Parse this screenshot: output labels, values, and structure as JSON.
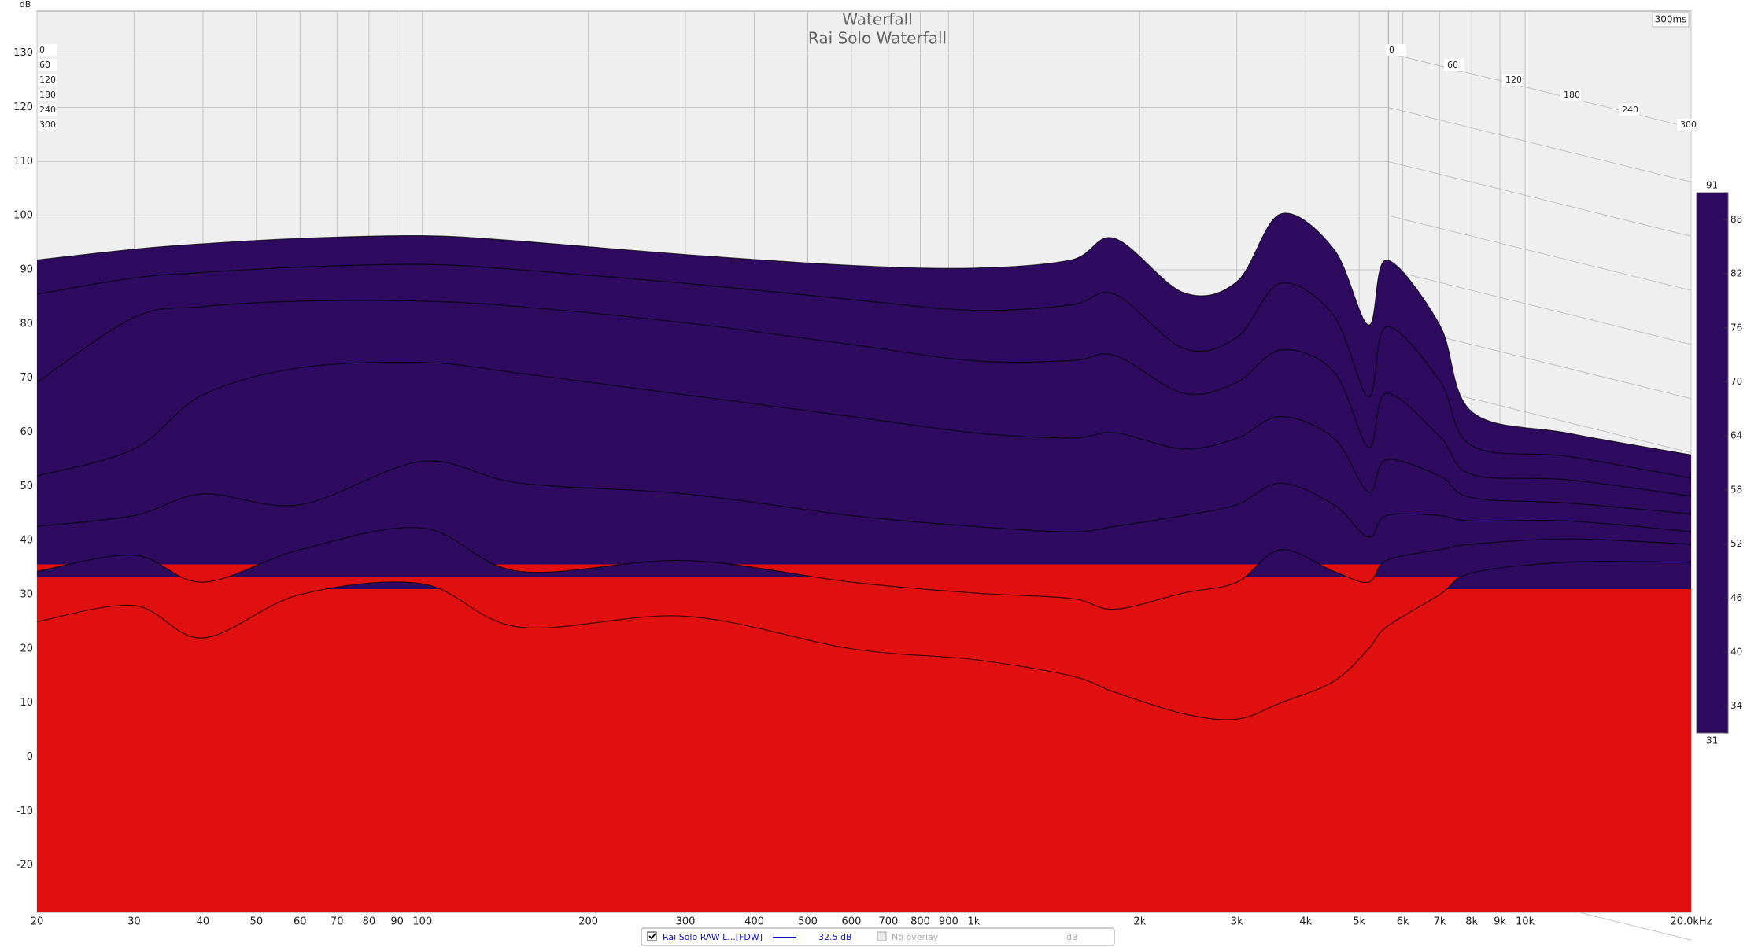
{
  "chart_data": {
    "type": "waterfall",
    "title": "Waterfall",
    "subtitle": "Rai Solo Waterfall",
    "y_label": "dB",
    "time_range_label": "300ms",
    "x": [
      20,
      30,
      40,
      60,
      100,
      150,
      300,
      600,
      1000,
      1500,
      1800,
      2400,
      3000,
      3600,
      4500,
      5200,
      5600,
      7000,
      8000,
      12000,
      20000
    ],
    "series": [
      {
        "time": 0,
        "values": [
          78,
          80,
          81,
          82,
          82.5,
          81.5,
          79,
          77,
          76.5,
          78,
          82,
          72,
          74,
          86.5,
          80,
          66,
          78,
          66,
          50,
          46,
          42
        ]
      },
      {
        "time": 50,
        "values": [
          74,
          77,
          78,
          79,
          79.5,
          78.5,
          76,
          73,
          71,
          72,
          74,
          64,
          66,
          76,
          70,
          55,
          68,
          58,
          46,
          44,
          40
        ]
      },
      {
        "time": 100,
        "values": [
          60,
          72,
          74,
          75,
          75,
          74,
          71,
          67,
          64,
          64,
          65,
          58,
          60,
          66,
          62,
          48,
          58,
          50,
          43,
          42,
          39
        ]
      },
      {
        "time": 150,
        "values": [
          45,
          50,
          60,
          65,
          66,
          64,
          60,
          56,
          53,
          52,
          53,
          50,
          52,
          56,
          52,
          42,
          48,
          45,
          41,
          40,
          38
        ]
      },
      {
        "time": 200,
        "values": [
          38,
          40,
          44,
          42,
          50,
          46,
          44,
          40,
          38,
          37,
          38,
          40,
          42,
          46,
          42,
          36,
          40,
          40,
          39,
          39,
          37
        ]
      },
      {
        "time": 250,
        "values": [
          32,
          35,
          30,
          36,
          40,
          32,
          34,
          30,
          28,
          27,
          25,
          28,
          30,
          36,
          32,
          30,
          34,
          36,
          37,
          38,
          37
        ]
      },
      {
        "time": 300,
        "values": [
          25,
          28,
          22,
          30,
          32,
          24,
          26,
          20,
          18,
          15,
          12,
          8,
          7,
          10,
          14,
          20,
          24,
          30,
          34,
          36,
          36
        ]
      }
    ],
    "line_color": "#000000",
    "xlim": [
      20,
      20000
    ],
    "log_x": true,
    "xticks": [
      20,
      30,
      40,
      50,
      60,
      70,
      80,
      90,
      100,
      200,
      300,
      400,
      500,
      600,
      700,
      800,
      900,
      {
        "value": 1000,
        "label": "1k"
      },
      {
        "value": 2000,
        "label": "2k"
      },
      {
        "value": 3000,
        "label": "3k"
      },
      {
        "value": 4000,
        "label": "4k"
      },
      {
        "value": 5000,
        "label": "5k"
      },
      {
        "value": 6000,
        "label": "6k"
      },
      {
        "value": 7000,
        "label": "7k"
      },
      {
        "value": 8000,
        "label": "8k"
      },
      {
        "value": 9000,
        "label": "9k"
      },
      {
        "value": 10000,
        "label": "10k"
      },
      {
        "value": 20000,
        "label": "20.0kHz"
      }
    ],
    "ylim": [
      -28.7,
      137.8
    ],
    "yticks": [
      130,
      120,
      110,
      100,
      90,
      80,
      70,
      60,
      50,
      40,
      30,
      20,
      10,
      0,
      -10,
      -20
    ],
    "tlim": [
      0,
      300
    ],
    "tticks": [
      0,
      60,
      120,
      180,
      240,
      300
    ],
    "grid": true,
    "colorscale": {
      "ticks": [
        31,
        34,
        40,
        46,
        52,
        58,
        64,
        70,
        76,
        82,
        88,
        91
      ],
      "colors": [
        "#2e0a5e",
        "#2b0c78",
        "#0a1eaa",
        "#0a62aa",
        "#0fa6a0",
        "#12bf6a",
        "#1eb422",
        "#72c808",
        "#e2d800",
        "#f2a400",
        "#e85400",
        "#e01010"
      ]
    },
    "legend": {
      "name": "Rai Solo RAW L...[FDW]",
      "color": "#1010c0",
      "level": "32.5 dB",
      "overlay": "No overlay",
      "unit": "dB"
    }
  }
}
